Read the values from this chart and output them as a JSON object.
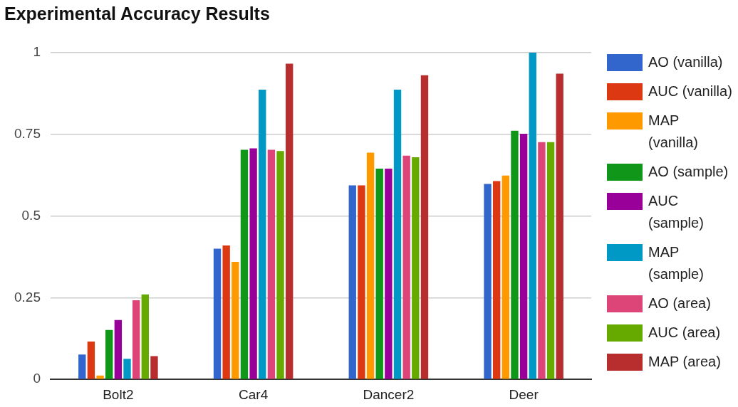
{
  "chart_data": {
    "type": "bar",
    "title": "Experimental Accuracy Results",
    "categories": [
      "Bolt2",
      "Car4",
      "Dancer2",
      "Deer"
    ],
    "series": [
      {
        "name": "AO (vanilla)",
        "color": "#3366cc",
        "values": [
          0.076,
          0.4,
          0.594,
          0.598
        ]
      },
      {
        "name": "AUC (vanilla)",
        "color": "#dc3912",
        "values": [
          0.116,
          0.41,
          0.594,
          0.607
        ]
      },
      {
        "name": "MAP (vanilla)",
        "color": "#ff9900",
        "values": [
          0.012,
          0.36,
          0.694,
          0.624
        ]
      },
      {
        "name": "AO (sample)",
        "color": "#109618",
        "values": [
          0.151,
          0.703,
          0.645,
          0.761
        ]
      },
      {
        "name": "AUC (sample)",
        "color": "#990099",
        "values": [
          0.182,
          0.707,
          0.645,
          0.752
        ]
      },
      {
        "name": "MAP (sample)",
        "color": "#0099c6",
        "values": [
          0.063,
          0.887,
          0.887,
          1.0
        ]
      },
      {
        "name": "AO (area)",
        "color": "#dd4477",
        "values": [
          0.242,
          0.703,
          0.685,
          0.726
        ]
      },
      {
        "name": "AUC (area)",
        "color": "#66aa00",
        "values": [
          0.26,
          0.699,
          0.68,
          0.726
        ]
      },
      {
        "name": "MAP (area)",
        "color": "#b82e2e",
        "values": [
          0.071,
          0.966,
          0.931,
          0.936
        ]
      }
    ],
    "ylim": [
      0,
      1
    ],
    "yticks": [
      0,
      0.25,
      0.5,
      0.75,
      1
    ],
    "grid": "y",
    "legend": "right"
  }
}
